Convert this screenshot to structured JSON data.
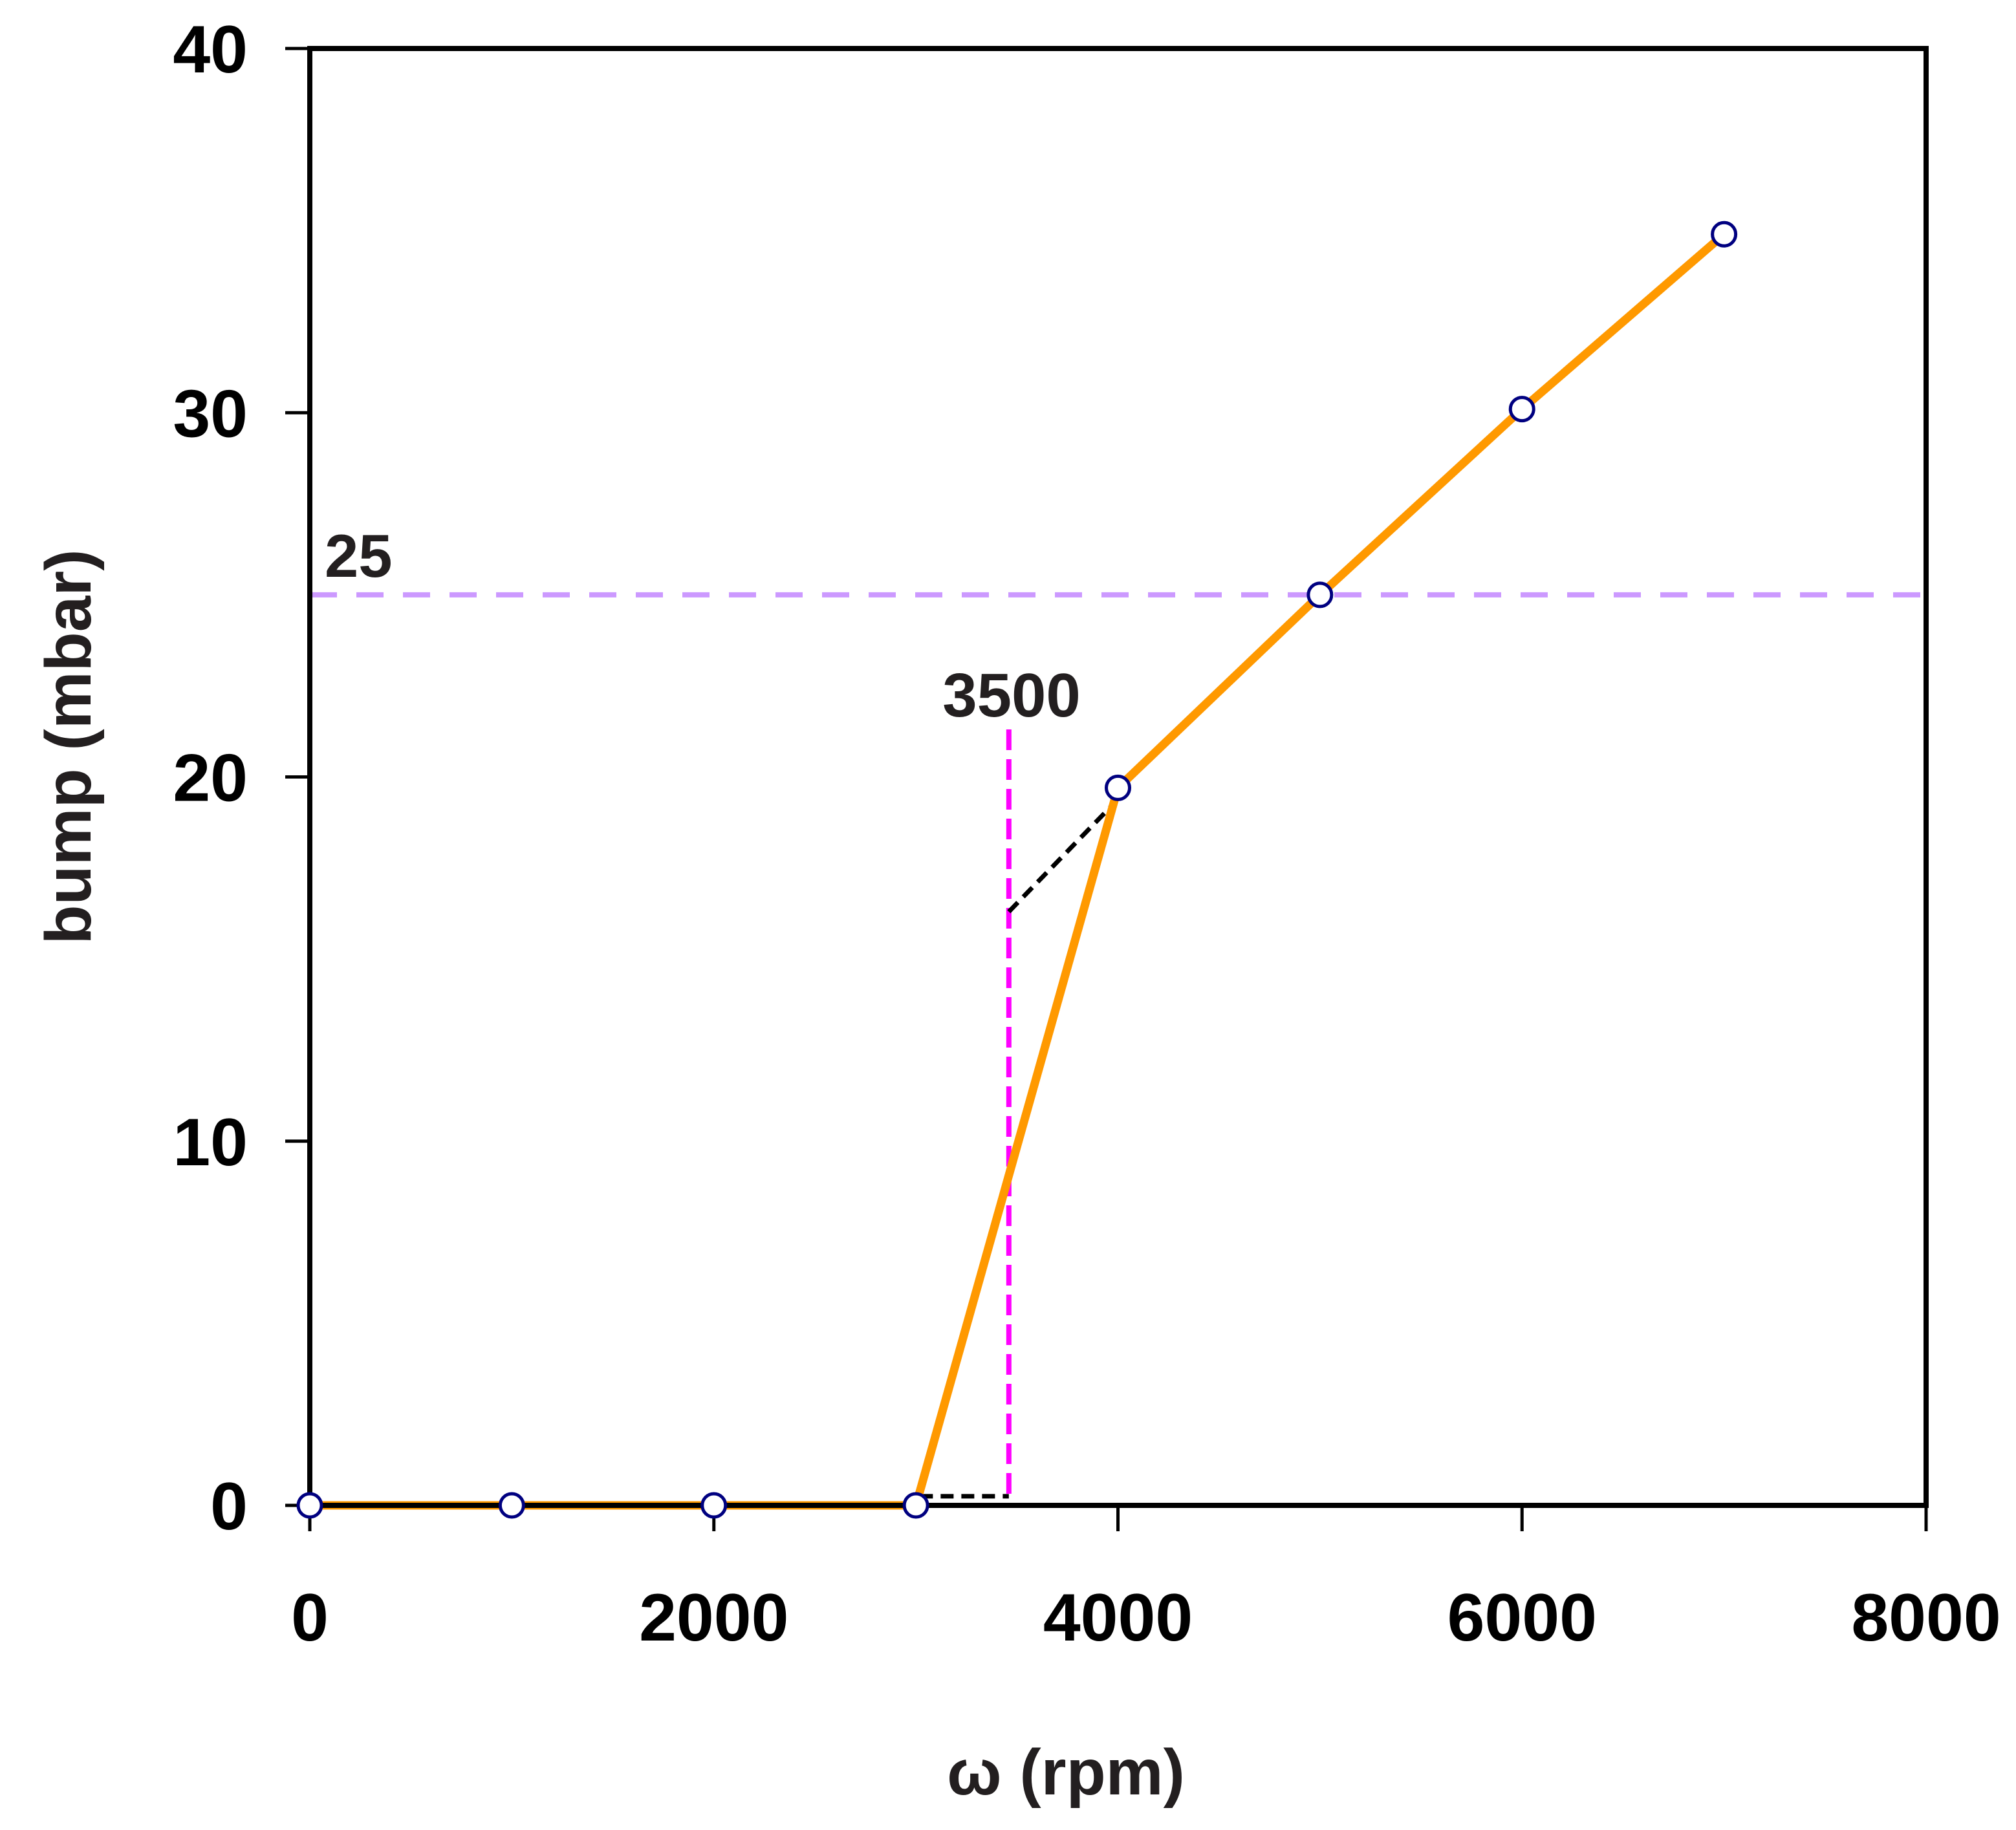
{
  "chart_data": {
    "type": "line",
    "title": "",
    "xlabel": "ω (rpm)",
    "ylabel": "bump (mbar)",
    "xlim": [
      0,
      8000
    ],
    "ylim": [
      0,
      40
    ],
    "xticks": [
      0,
      2000,
      4000,
      6000,
      8000
    ],
    "xtick_labels": [
      "0",
      "2000",
      "4000",
      "6000",
      "8000"
    ],
    "xminor_ticks": [
      1000,
      3000,
      5000,
      7000
    ],
    "yticks": [
      0,
      10,
      20,
      30,
      40
    ],
    "ytick_labels": [
      "0",
      "10",
      "20",
      "30",
      "40"
    ],
    "grid": false,
    "legend": null,
    "series": [
      {
        "name": "bump",
        "color": "#ff9900",
        "marker": "open-circle",
        "marker_edge_color": "#000080",
        "x": [
          0,
          1000,
          2000,
          3000,
          4000,
          5000,
          6000,
          7000
        ],
        "values": [
          0,
          0,
          0,
          0,
          19.7,
          25.0,
          30.1,
          34.9
        ]
      }
    ],
    "reference_lines": [
      {
        "kind": "horizontal",
        "value": 25,
        "label": "25",
        "color": "#cc99ff",
        "style": "dashed"
      },
      {
        "kind": "vertical",
        "value": 3460,
        "label": "3500",
        "color": "#ff00ff",
        "style": "dashed",
        "y_top": 20.9
      }
    ],
    "extrapolation_lines": [
      {
        "color": "#000000",
        "style": "dashed",
        "x": [
          3460,
          3985
        ],
        "y": [
          16.3,
          19.3
        ]
      },
      {
        "color": "#000000",
        "style": "dashed",
        "x": [
          3020,
          3460
        ],
        "y": [
          0.25,
          0.25
        ]
      }
    ],
    "annotations": [
      {
        "text": "25",
        "x": 70,
        "y": 26.2
      },
      {
        "text": "3500",
        "x": 3500,
        "y": 21.7
      }
    ]
  }
}
